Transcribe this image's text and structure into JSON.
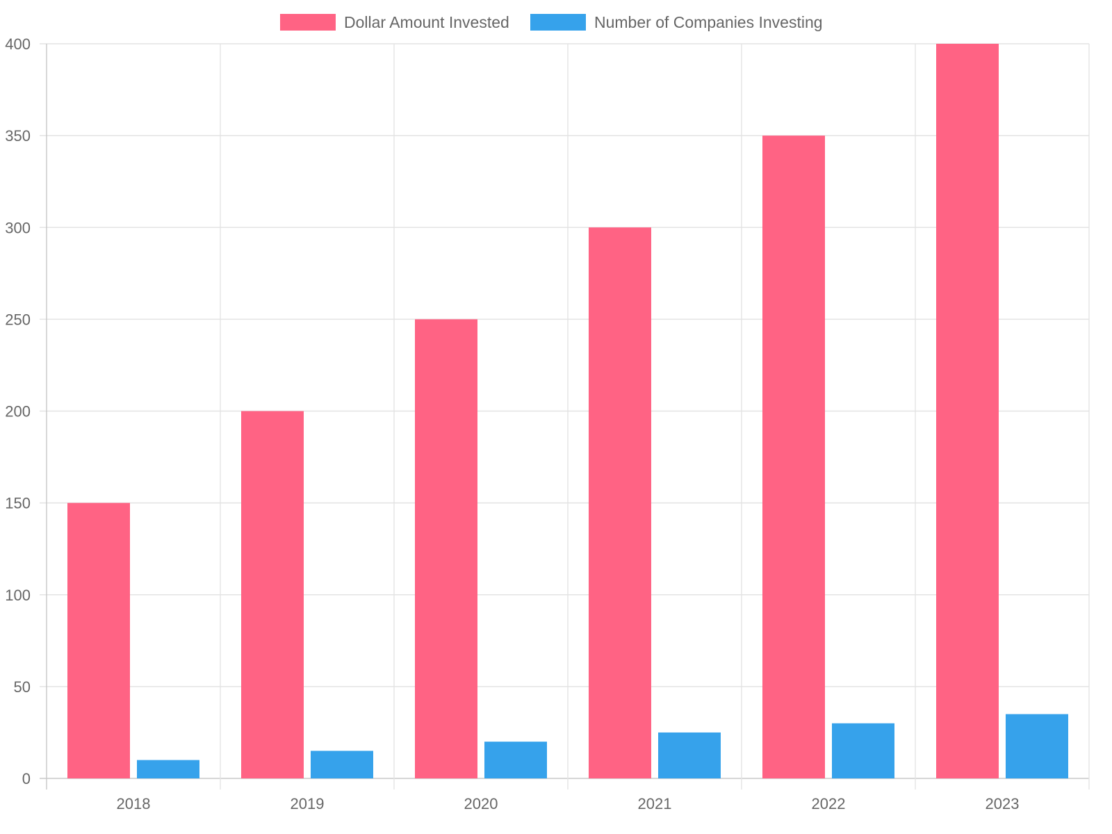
{
  "chart_data": {
    "type": "bar",
    "categories": [
      "2018",
      "2019",
      "2020",
      "2021",
      "2022",
      "2023"
    ],
    "series": [
      {
        "name": "Dollar Amount Invested",
        "values": [
          150,
          200,
          250,
          300,
          350,
          400
        ],
        "color": "#ff6384"
      },
      {
        "name": "Number of Companies Investing",
        "values": [
          10,
          15,
          20,
          25,
          30,
          35
        ],
        "color": "#36a2eb"
      }
    ],
    "ylim": [
      0,
      400
    ],
    "yticks": [
      0,
      50,
      100,
      150,
      200,
      250,
      300,
      350,
      400
    ],
    "grid": true,
    "legend_position": "top"
  }
}
